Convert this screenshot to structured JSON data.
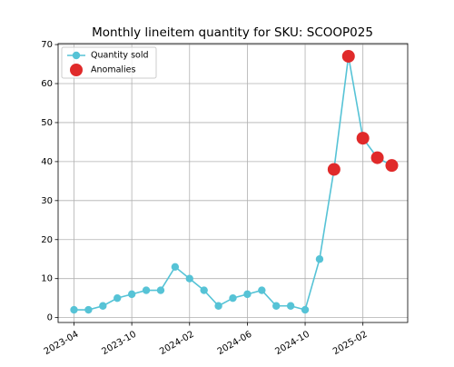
{
  "chart_data": {
    "type": "line",
    "title": "Monthly lineitem quantity for SKU: SCOOP025",
    "categories": [
      "2023-04",
      null,
      null,
      null,
      "2023-10",
      null,
      null,
      null,
      "2024-02",
      null,
      null,
      null,
      "2024-06",
      null,
      null,
      null,
      "2024-10",
      null,
      null,
      null,
      "2025-02",
      null,
      null
    ],
    "series": [
      {
        "name": "Quantity sold",
        "color": "#56c3d6",
        "type": "line",
        "values": [
          2,
          2,
          3,
          5,
          6,
          7,
          7,
          13,
          10,
          7,
          3,
          5,
          6,
          7,
          3,
          3,
          2,
          15,
          38,
          67,
          46,
          41,
          39
        ]
      },
      {
        "name": "Anomalies",
        "color": "#e02a2a",
        "type": "scatter",
        "values": [
          null,
          null,
          null,
          null,
          null,
          null,
          null,
          null,
          null,
          null,
          null,
          null,
          null,
          null,
          null,
          null,
          null,
          null,
          38,
          67,
          46,
          41,
          39
        ]
      }
    ],
    "ylim": [
      -1.25,
      70.25
    ],
    "yticks": [
      0,
      10,
      20,
      30,
      40,
      50,
      60,
      70
    ],
    "grid": true,
    "legend": "upper left"
  }
}
